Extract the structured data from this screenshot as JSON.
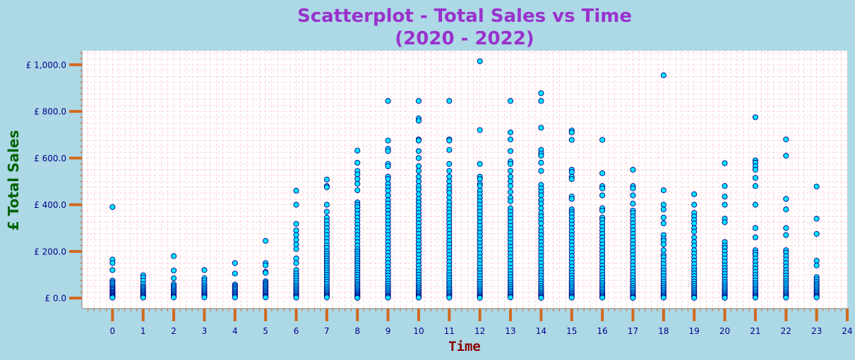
{
  "chart_data": {
    "type": "scatter",
    "title_line1": "Scatterplot - Total Sales vs Time",
    "title_line2": "(2020 - 2022)",
    "xlabel": "Time",
    "ylabel": "£ Total Sales",
    "xlim": [
      -1,
      24
    ],
    "ylim": [
      -45,
      1060
    ],
    "x_ticks": [
      "0",
      "1",
      "2",
      "3",
      "4",
      "5",
      "6",
      "7",
      "8",
      "9",
      "10",
      "11",
      "12",
      "13",
      "14",
      "15",
      "16",
      "17",
      "18",
      "19",
      "20",
      "21",
      "22",
      "23",
      "24"
    ],
    "y_ticks": [
      {
        "value": 0,
        "label": "£ 0.0"
      },
      {
        "value": 200,
        "label": "£ 200.0"
      },
      {
        "value": 400,
        "label": "£ 400.0"
      },
      {
        "value": 600,
        "label": "£ 600.0"
      },
      {
        "value": 800,
        "label": "£ 800.0"
      },
      {
        "value": 1000,
        "label": "£ 1,000.0"
      }
    ],
    "grid": true,
    "colors": {
      "background": "#add8e6",
      "plot_area": "#ffffff",
      "grid": "#ffc0cb",
      "title": "#9932cc",
      "xlabel": "#8b0000",
      "ylabel": "#006400",
      "tick_label": "#00008b",
      "tick_mark": "#d2691e",
      "marker_fill": "#00e5ff",
      "marker_edge": "#00008b"
    },
    "points_by_hour": [
      {
        "x": 0,
        "y": [
          390,
          165,
          150,
          120,
          75,
          68,
          62,
          55,
          48,
          42,
          38,
          33,
          28,
          24,
          20,
          16,
          12,
          8,
          5,
          2
        ]
      },
      {
        "x": 1,
        "y": [
          98,
          88,
          75,
          60,
          50,
          44,
          38,
          32,
          27,
          22,
          17,
          12,
          8,
          4,
          2
        ]
      },
      {
        "x": 2,
        "y": [
          180,
          118,
          85,
          60,
          52,
          45,
          38,
          32,
          26,
          20,
          15,
          10,
          6,
          3
        ]
      },
      {
        "x": 3,
        "y": [
          120,
          85,
          75,
          65,
          55,
          47,
          40,
          33,
          27,
          21,
          16,
          11,
          7,
          3
        ]
      },
      {
        "x": 4,
        "y": [
          150,
          105,
          58,
          52,
          46,
          40,
          34,
          28,
          22,
          17,
          12,
          7,
          3
        ]
      },
      {
        "x": 5,
        "y": [
          245,
          150,
          140,
          112,
          108,
          72,
          66,
          60,
          54,
          48,
          42,
          36,
          30,
          25,
          20,
          15,
          10,
          6,
          3
        ]
      },
      {
        "x": 6,
        "y": [
          460,
          400,
          318,
          290,
          270,
          250,
          230,
          210,
          170,
          150,
          120,
          105,
          95,
          85,
          75,
          65,
          55,
          48,
          40,
          33,
          26,
          20,
          14,
          9,
          5,
          2
        ]
      },
      {
        "x": 7,
        "y": [
          508,
          480,
          475,
          400,
          370,
          345,
          330,
          315,
          300,
          285,
          270,
          255,
          240,
          225,
          215,
          200,
          190,
          180,
          170,
          160,
          150,
          140,
          130,
          120,
          110,
          100,
          90,
          80,
          70,
          60,
          50,
          42,
          35,
          28,
          22,
          16,
          11,
          7,
          3
        ]
      },
      {
        "x": 8,
        "y": [
          632,
          580,
          545,
          530,
          510,
          490,
          462,
          410,
          400,
          390,
          375,
          360,
          345,
          330,
          315,
          300,
          285,
          270,
          255,
          240,
          225,
          210,
          200,
          190,
          180,
          170,
          160,
          150,
          140,
          130,
          120,
          110,
          100,
          90,
          80,
          70,
          62,
          55,
          48,
          41,
          34,
          28,
          22,
          17,
          12,
          8,
          4,
          1
        ]
      },
      {
        "x": 9,
        "y": [
          845,
          675,
          640,
          630,
          575,
          565,
          520,
          510,
          490,
          475,
          460,
          440,
          420,
          405,
          390,
          375,
          360,
          345,
          330,
          315,
          300,
          285,
          270,
          255,
          240,
          225,
          210,
          195,
          180,
          165,
          150,
          135,
          120,
          108,
          96,
          84,
          72,
          62,
          52,
          43,
          35,
          28,
          21,
          15,
          10,
          6,
          2
        ]
      },
      {
        "x": 10,
        "y": [
          845,
          770,
          760,
          680,
          675,
          630,
          600,
          565,
          545,
          520,
          500,
          480,
          465,
          445,
          425,
          410,
          395,
          380,
          365,
          350,
          335,
          320,
          305,
          290,
          275,
          260,
          245,
          230,
          215,
          200,
          185,
          170,
          155,
          140,
          125,
          112,
          100,
          88,
          76,
          65,
          55,
          46,
          38,
          30,
          23,
          17,
          11,
          6,
          2
        ]
      },
      {
        "x": 11,
        "y": [
          845,
          680,
          675,
          635,
          575,
          545,
          520,
          500,
          480,
          465,
          450,
          430,
          410,
          395,
          380,
          365,
          350,
          335,
          320,
          305,
          290,
          275,
          260,
          245,
          230,
          215,
          200,
          185,
          170,
          155,
          140,
          125,
          110,
          98,
          86,
          75,
          64,
          54,
          45,
          37,
          29,
          22,
          16,
          10,
          5,
          2
        ]
      },
      {
        "x": 12,
        "y": [
          1015,
          720,
          575,
          520,
          510,
          490,
          480,
          460,
          445,
          430,
          415,
          400,
          385,
          370,
          355,
          340,
          325,
          310,
          295,
          280,
          265,
          250,
          235,
          220,
          205,
          190,
          175,
          160,
          145,
          130,
          118,
          106,
          94,
          82,
          70,
          60,
          50,
          41,
          33,
          26,
          19,
          13,
          8,
          4,
          1
        ]
      },
      {
        "x": 13,
        "y": [
          845,
          710,
          680,
          630,
          585,
          575,
          545,
          520,
          500,
          480,
          455,
          430,
          415,
          385,
          370,
          355,
          340,
          325,
          310,
          295,
          280,
          265,
          250,
          235,
          220,
          205,
          190,
          175,
          160,
          145,
          130,
          115,
          102,
          90,
          78,
          67,
          57,
          48,
          40,
          32,
          25,
          18,
          12,
          7,
          3
        ]
      },
      {
        "x": 14,
        "y": [
          878,
          845,
          730,
          635,
          620,
          610,
          580,
          545,
          485,
          470,
          455,
          440,
          420,
          405,
          385,
          365,
          350,
          335,
          320,
          300,
          285,
          270,
          255,
          240,
          225,
          210,
          195,
          180,
          165,
          150,
          135,
          120,
          108,
          96,
          84,
          72,
          62,
          52,
          43,
          35,
          27,
          20,
          14,
          9,
          4,
          1
        ]
      },
      {
        "x": 15,
        "y": [
          718,
          710,
          678,
          550,
          540,
          520,
          510,
          435,
          425,
          380,
          370,
          360,
          345,
          330,
          315,
          300,
          285,
          270,
          255,
          240,
          225,
          210,
          195,
          180,
          165,
          150,
          135,
          120,
          108,
          96,
          85,
          74,
          64,
          55,
          46,
          38,
          30,
          23,
          17,
          11,
          6,
          2
        ]
      },
      {
        "x": 16,
        "y": [
          678,
          535,
          480,
          470,
          440,
          385,
          375,
          345,
          335,
          320,
          305,
          290,
          275,
          260,
          245,
          230,
          215,
          200,
          185,
          170,
          155,
          140,
          126,
          112,
          99,
          87,
          75,
          64,
          54,
          45,
          37,
          29,
          22,
          16,
          10,
          5,
          2
        ]
      },
      {
        "x": 17,
        "y": [
          550,
          480,
          470,
          440,
          405,
          375,
          365,
          350,
          335,
          320,
          305,
          290,
          275,
          260,
          245,
          230,
          215,
          200,
          185,
          170,
          155,
          140,
          125,
          111,
          98,
          85,
          73,
          62,
          52,
          43,
          35,
          27,
          20,
          14,
          8,
          4,
          1
        ]
      },
      {
        "x": 18,
        "y": [
          955,
          462,
          400,
          380,
          345,
          320,
          270,
          255,
          245,
          230,
          205,
          185,
          175,
          160,
          145,
          130,
          118,
          106,
          94,
          82,
          71,
          61,
          52,
          44,
          36,
          29,
          22,
          16,
          10,
          5,
          2
        ]
      },
      {
        "x": 19,
        "y": [
          445,
          400,
          365,
          350,
          335,
          320,
          300,
          285,
          260,
          240,
          225,
          205,
          190,
          175,
          160,
          145,
          130,
          118,
          106,
          94,
          82,
          71,
          61,
          52,
          43,
          35,
          28,
          21,
          15,
          9,
          4,
          1
        ]
      },
      {
        "x": 20,
        "y": [
          578,
          480,
          435,
          400,
          340,
          325,
          240,
          225,
          215,
          200,
          185,
          170,
          155,
          140,
          128,
          116,
          104,
          92,
          80,
          69,
          59,
          50,
          42,
          34,
          27,
          20,
          14,
          9,
          4,
          1
        ]
      },
      {
        "x": 21,
        "y": [
          775,
          590,
          580,
          565,
          550,
          515,
          480,
          400,
          300,
          260,
          205,
          195,
          185,
          170,
          155,
          140,
          126,
          112,
          99,
          87,
          75,
          64,
          54,
          45,
          37,
          29,
          22,
          16,
          10,
          5,
          2
        ]
      },
      {
        "x": 22,
        "y": [
          680,
          610,
          425,
          380,
          300,
          270,
          205,
          195,
          180,
          165,
          150,
          135,
          120,
          108,
          96,
          84,
          73,
          63,
          54,
          45,
          37,
          29,
          22,
          16,
          10,
          5,
          2
        ]
      },
      {
        "x": 23,
        "y": [
          478,
          340,
          275,
          160,
          140,
          90,
          80,
          70,
          62,
          55,
          48,
          41,
          34,
          28,
          22,
          16,
          11,
          7,
          3
        ]
      }
    ]
  }
}
